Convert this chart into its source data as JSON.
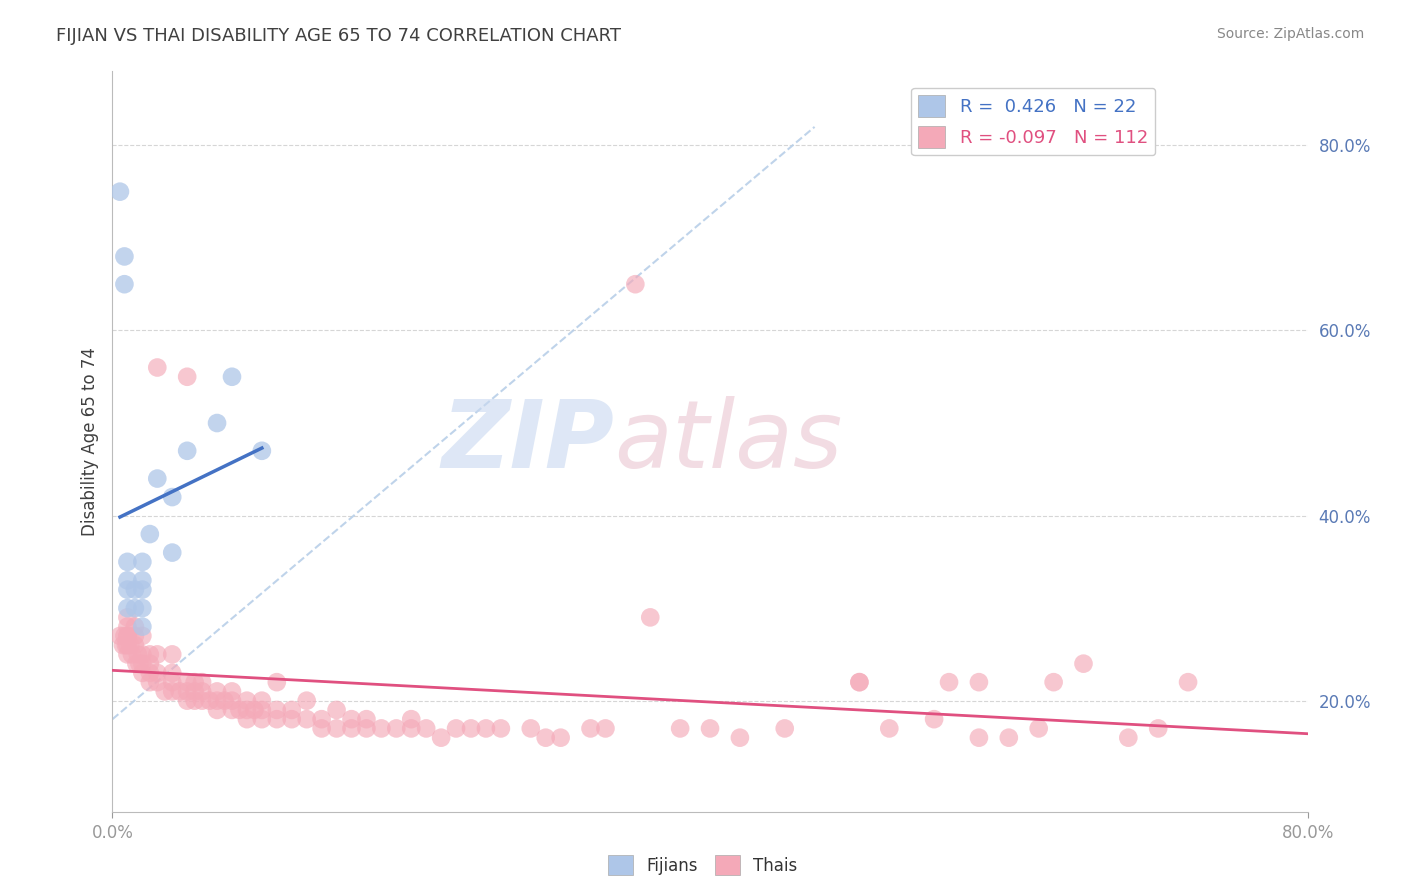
{
  "title": "FIJIAN VS THAI DISABILITY AGE 65 TO 74 CORRELATION CHART",
  "source_text": "Source: ZipAtlas.com",
  "ylabel": "Disability Age 65 to 74",
  "xlim": [
    0.0,
    0.8
  ],
  "ylim": [
    0.08,
    0.88
  ],
  "xticks_show": [
    0.0,
    0.8
  ],
  "xticklabels_show": [
    "0.0%",
    "80.0%"
  ],
  "yticks_right": [
    0.2,
    0.4,
    0.6,
    0.8
  ],
  "yticklabels_right": [
    "20.0%",
    "40.0%",
    "60.0%",
    "80.0%"
  ],
  "grid_yticks": [
    0.2,
    0.4,
    0.6,
    0.8
  ],
  "fijian_R": 0.426,
  "fijian_N": 22,
  "thai_R": -0.097,
  "thai_N": 112,
  "fijian_color": "#aec6e8",
  "thai_color": "#f4a9b8",
  "fijian_line_color": "#4472c4",
  "thai_line_color": "#e05080",
  "ref_line_color": "#b8cfe8",
  "background_color": "#ffffff",
  "grid_color": "#cccccc",
  "title_color": "#404040",
  "fijian_x": [
    0.005,
    0.008,
    0.008,
    0.01,
    0.01,
    0.01,
    0.01,
    0.015,
    0.015,
    0.02,
    0.02,
    0.02,
    0.02,
    0.02,
    0.025,
    0.03,
    0.04,
    0.04,
    0.05,
    0.07,
    0.08,
    0.1
  ],
  "fijian_y": [
    0.75,
    0.65,
    0.68,
    0.3,
    0.32,
    0.33,
    0.35,
    0.3,
    0.32,
    0.28,
    0.3,
    0.32,
    0.33,
    0.35,
    0.38,
    0.44,
    0.36,
    0.42,
    0.47,
    0.5,
    0.55,
    0.47
  ],
  "thai_x": [
    0.005,
    0.007,
    0.008,
    0.009,
    0.01,
    0.01,
    0.01,
    0.01,
    0.01,
    0.01,
    0.012,
    0.013,
    0.015,
    0.015,
    0.015,
    0.016,
    0.017,
    0.018,
    0.02,
    0.02,
    0.02,
    0.02,
    0.025,
    0.025,
    0.025,
    0.025,
    0.03,
    0.03,
    0.03,
    0.03,
    0.035,
    0.04,
    0.04,
    0.04,
    0.04,
    0.045,
    0.05,
    0.05,
    0.05,
    0.05,
    0.055,
    0.055,
    0.055,
    0.06,
    0.06,
    0.06,
    0.065,
    0.07,
    0.07,
    0.07,
    0.075,
    0.08,
    0.08,
    0.08,
    0.085,
    0.09,
    0.09,
    0.09,
    0.095,
    0.1,
    0.1,
    0.1,
    0.11,
    0.11,
    0.11,
    0.12,
    0.12,
    0.13,
    0.13,
    0.14,
    0.14,
    0.15,
    0.15,
    0.16,
    0.16,
    0.17,
    0.17,
    0.18,
    0.19,
    0.2,
    0.2,
    0.21,
    0.22,
    0.23,
    0.24,
    0.25,
    0.26,
    0.28,
    0.29,
    0.3,
    0.32,
    0.33,
    0.35,
    0.36,
    0.38,
    0.4,
    0.42,
    0.45,
    0.5,
    0.52,
    0.55,
    0.58,
    0.6,
    0.62,
    0.65,
    0.68,
    0.7,
    0.72,
    0.63,
    0.58,
    0.56,
    0.5
  ],
  "thai_y": [
    0.27,
    0.26,
    0.27,
    0.26,
    0.25,
    0.26,
    0.27,
    0.27,
    0.28,
    0.29,
    0.26,
    0.25,
    0.26,
    0.27,
    0.28,
    0.24,
    0.25,
    0.24,
    0.23,
    0.24,
    0.25,
    0.27,
    0.22,
    0.23,
    0.24,
    0.25,
    0.22,
    0.23,
    0.25,
    0.56,
    0.21,
    0.21,
    0.22,
    0.23,
    0.25,
    0.21,
    0.2,
    0.21,
    0.22,
    0.55,
    0.2,
    0.21,
    0.22,
    0.2,
    0.21,
    0.22,
    0.2,
    0.19,
    0.2,
    0.21,
    0.2,
    0.19,
    0.2,
    0.21,
    0.19,
    0.18,
    0.19,
    0.2,
    0.19,
    0.18,
    0.19,
    0.2,
    0.18,
    0.19,
    0.22,
    0.18,
    0.19,
    0.18,
    0.2,
    0.17,
    0.18,
    0.17,
    0.19,
    0.17,
    0.18,
    0.17,
    0.18,
    0.17,
    0.17,
    0.17,
    0.18,
    0.17,
    0.16,
    0.17,
    0.17,
    0.17,
    0.17,
    0.17,
    0.16,
    0.16,
    0.17,
    0.17,
    0.65,
    0.29,
    0.17,
    0.17,
    0.16,
    0.17,
    0.22,
    0.17,
    0.18,
    0.16,
    0.16,
    0.17,
    0.24,
    0.16,
    0.17,
    0.22,
    0.22,
    0.22,
    0.22,
    0.22
  ]
}
